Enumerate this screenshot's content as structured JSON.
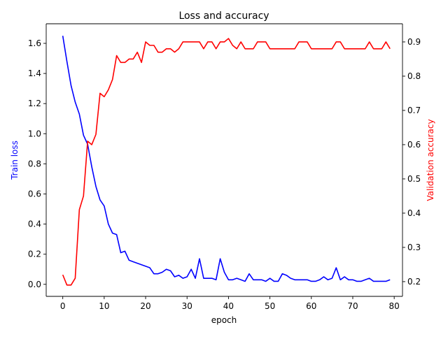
{
  "chart_data": {
    "type": "line",
    "title": "Loss and accuracy",
    "xlabel": "epoch",
    "ylabel_left": "Train loss",
    "ylabel_right": "Validation accuracy",
    "xlim": [
      -4,
      82
    ],
    "ylim_left": [
      -0.08,
      1.73
    ],
    "ylim_right": [
      0.157,
      0.953
    ],
    "xticks": [
      0,
      10,
      20,
      30,
      40,
      50,
      60,
      70,
      80
    ],
    "yticks_left": [
      0.0,
      0.2,
      0.4,
      0.6,
      0.8,
      1.0,
      1.2,
      1.4,
      1.6
    ],
    "yticks_right": [
      0.2,
      0.3,
      0.4,
      0.5,
      0.6,
      0.7,
      0.8,
      0.9
    ],
    "grid": false,
    "colors": {
      "loss": "#0000ff",
      "accuracy": "#ff0000",
      "axis": "#000000"
    },
    "series": [
      {
        "name": "Train loss",
        "axis": "left",
        "color": "#0000ff",
        "x": [
          0,
          1,
          2,
          3,
          4,
          5,
          6,
          7,
          8,
          9,
          10,
          11,
          12,
          13,
          14,
          15,
          16,
          17,
          18,
          19,
          20,
          21,
          22,
          23,
          24,
          25,
          26,
          27,
          28,
          29,
          30,
          31,
          32,
          33,
          34,
          35,
          36,
          37,
          38,
          39,
          40,
          41,
          42,
          43,
          44,
          45,
          46,
          47,
          48,
          49,
          50,
          51,
          52,
          53,
          54,
          55,
          56,
          57,
          58,
          59,
          60,
          61,
          62,
          63,
          64,
          65,
          66,
          67,
          68,
          69,
          70,
          71,
          72,
          73,
          74,
          75,
          76,
          77,
          78,
          79
        ],
        "values": [
          1.65,
          1.48,
          1.32,
          1.21,
          1.13,
          0.99,
          0.93,
          0.78,
          0.65,
          0.56,
          0.52,
          0.4,
          0.34,
          0.33,
          0.21,
          0.22,
          0.16,
          0.15,
          0.14,
          0.13,
          0.12,
          0.11,
          0.07,
          0.07,
          0.08,
          0.1,
          0.09,
          0.05,
          0.06,
          0.04,
          0.05,
          0.1,
          0.04,
          0.17,
          0.04,
          0.04,
          0.04,
          0.03,
          0.17,
          0.08,
          0.03,
          0.03,
          0.04,
          0.03,
          0.02,
          0.07,
          0.03,
          0.03,
          0.03,
          0.02,
          0.04,
          0.02,
          0.02,
          0.07,
          0.06,
          0.04,
          0.03,
          0.03,
          0.03,
          0.03,
          0.02,
          0.02,
          0.03,
          0.05,
          0.03,
          0.04,
          0.11,
          0.03,
          0.05,
          0.03,
          0.03,
          0.02,
          0.02,
          0.03,
          0.04,
          0.02,
          0.02,
          0.02,
          0.02,
          0.03
        ]
      },
      {
        "name": "Validation accuracy",
        "axis": "right",
        "color": "#ff0000",
        "x": [
          0,
          1,
          2,
          3,
          4,
          5,
          6,
          7,
          8,
          9,
          10,
          11,
          12,
          13,
          14,
          15,
          16,
          17,
          18,
          19,
          20,
          21,
          22,
          23,
          24,
          25,
          26,
          27,
          28,
          29,
          30,
          31,
          32,
          33,
          34,
          35,
          36,
          37,
          38,
          39,
          40,
          41,
          42,
          43,
          44,
          45,
          46,
          47,
          48,
          49,
          50,
          51,
          52,
          53,
          54,
          55,
          56,
          57,
          58,
          59,
          60,
          61,
          62,
          63,
          64,
          65,
          66,
          67,
          68,
          69,
          70,
          71,
          72,
          73,
          74,
          75,
          76,
          77,
          78,
          79
        ],
        "values": [
          0.22,
          0.19,
          0.19,
          0.21,
          0.41,
          0.45,
          0.61,
          0.6,
          0.63,
          0.75,
          0.74,
          0.76,
          0.79,
          0.86,
          0.84,
          0.84,
          0.85,
          0.85,
          0.87,
          0.84,
          0.9,
          0.89,
          0.89,
          0.87,
          0.87,
          0.88,
          0.88,
          0.87,
          0.88,
          0.9,
          0.9,
          0.9,
          0.9,
          0.9,
          0.88,
          0.9,
          0.9,
          0.88,
          0.9,
          0.9,
          0.91,
          0.89,
          0.88,
          0.9,
          0.88,
          0.88,
          0.88,
          0.9,
          0.9,
          0.9,
          0.88,
          0.88,
          0.88,
          0.88,
          0.88,
          0.88,
          0.88,
          0.9,
          0.9,
          0.9,
          0.88,
          0.88,
          0.88,
          0.88,
          0.88,
          0.88,
          0.9,
          0.9,
          0.88,
          0.88,
          0.88,
          0.88,
          0.88,
          0.88,
          0.9,
          0.88,
          0.88,
          0.88,
          0.9,
          0.88
        ]
      }
    ]
  }
}
